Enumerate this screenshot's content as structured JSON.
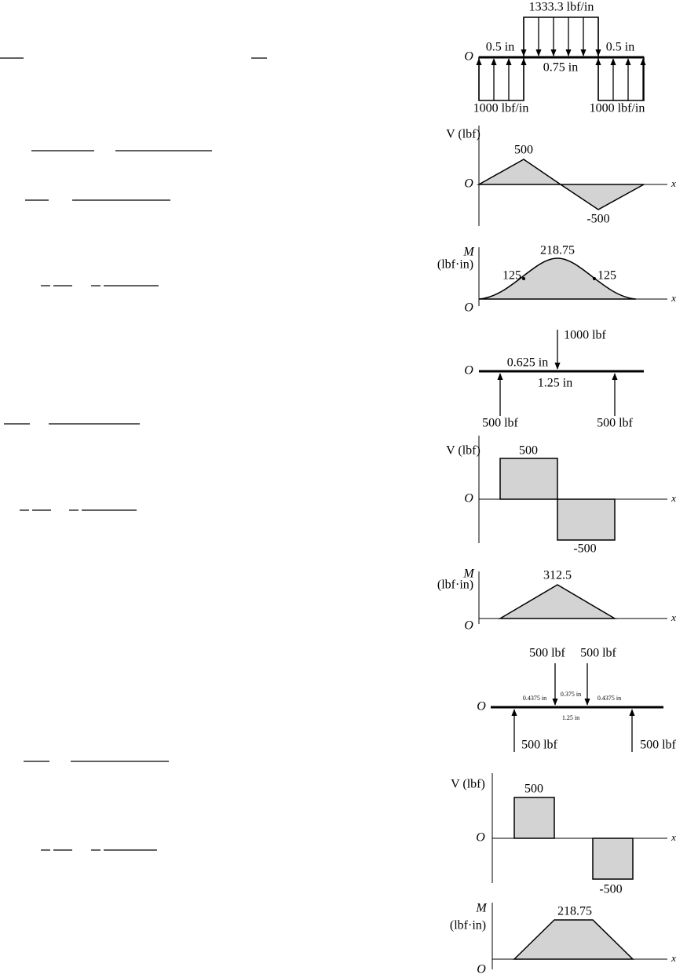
{
  "diagrams": [
    {
      "load": {
        "origin": "O",
        "distributed_load": "1333.3 lbf/in",
        "left_span": "0.5 in",
        "middle_span": "0.75 in",
        "right_span": "0.5 in",
        "left_support_load": "1000 lbf/in",
        "right_support_load": "1000 lbf/in"
      },
      "shear": {
        "axis_label": "V (lbf)",
        "origin": "O",
        "x_label": "x",
        "max_label": "500",
        "min_label": "-500"
      },
      "moment": {
        "axis_symbol": "M",
        "axis_unit": "(lbf·in)",
        "origin": "O",
        "x_label": "x",
        "max_label": "218.75",
        "left_point_label": "125",
        "right_point_label": "125"
      }
    },
    {
      "load": {
        "origin": "O",
        "point_load": "1000 lbf",
        "half_span": "0.625 in",
        "span": "1.25 in",
        "left_reaction": "500 lbf",
        "right_reaction": "500 lbf"
      },
      "shear": {
        "axis_label": "V (lbf)",
        "origin": "O",
        "x_label": "x",
        "max_label": "500",
        "min_label": "-500"
      },
      "moment": {
        "axis_symbol": "M",
        "axis_unit": "(lbf·in)",
        "origin": "O",
        "x_label": "x",
        "max_label": "312.5"
      }
    },
    {
      "load": {
        "origin": "O",
        "left_load": "500 lbf",
        "right_load": "500 lbf",
        "left_span": "0.4375 in",
        "middle_span": "0.375 in",
        "right_span": "0.4375 in",
        "span": "1.25 in",
        "left_reaction": "500 lbf",
        "right_reaction": "500 lbf"
      },
      "shear": {
        "axis_label": "V (lbf)",
        "origin": "O",
        "x_label": "x",
        "max_label": "500",
        "min_label": "-500"
      },
      "moment": {
        "axis_symbol": "M",
        "axis_unit": "(lbf·in)",
        "origin": "O",
        "x_label": "x",
        "max_label": "218.75"
      }
    }
  ]
}
